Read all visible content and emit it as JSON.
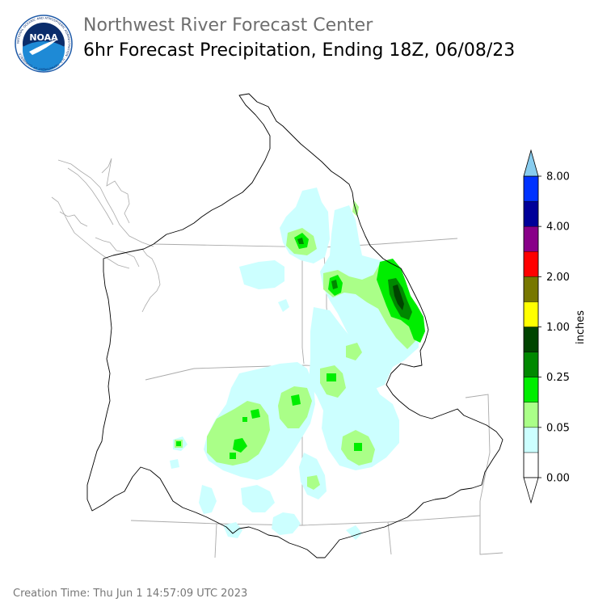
{
  "header": {
    "agency": "Northwest River Forecast Center",
    "product": "6hr Forecast Precipitation, Ending 18Z, 06/08/23",
    "logo_text": "NOAA",
    "logo_ring_text": "NATIONAL OCEANIC AND ATMOSPHERIC ADMINISTRATION · U.S. DEPARTMENT OF COMMERCE"
  },
  "footer": {
    "creation_label": "Creation Time:",
    "creation_value": "Thu Jun 1 14:57:09 UTC 2023"
  },
  "colorbar": {
    "unit_label": "inches",
    "tick_labels": [
      "0.00",
      "0.05",
      "0.25",
      "1.00",
      "2.00",
      "4.00",
      "8.00"
    ],
    "bins": [
      {
        "color": "#ffffff"
      },
      {
        "color": "#ccffff"
      },
      {
        "color": "#aaff88"
      },
      {
        "color": "#00ee00"
      },
      {
        "color": "#008800"
      },
      {
        "color": "#004400"
      },
      {
        "color": "#ffff00"
      },
      {
        "color": "#777700"
      },
      {
        "color": "#ff0000"
      },
      {
        "color": "#880088"
      },
      {
        "color": "#000099"
      },
      {
        "color": "#0033ff"
      },
      {
        "color": "#88ccee"
      }
    ]
  },
  "colors": {
    "light": "#ccffff",
    "pale_green": "#aaff88",
    "green": "#00ee00",
    "dark_green": "#008800",
    "darkest": "#004400",
    "basin_outline": "#000000",
    "state_line": "#aaaaaa",
    "noaa_blue": "#1e5aa8",
    "noaa_dark": "#0b2d6b"
  }
}
